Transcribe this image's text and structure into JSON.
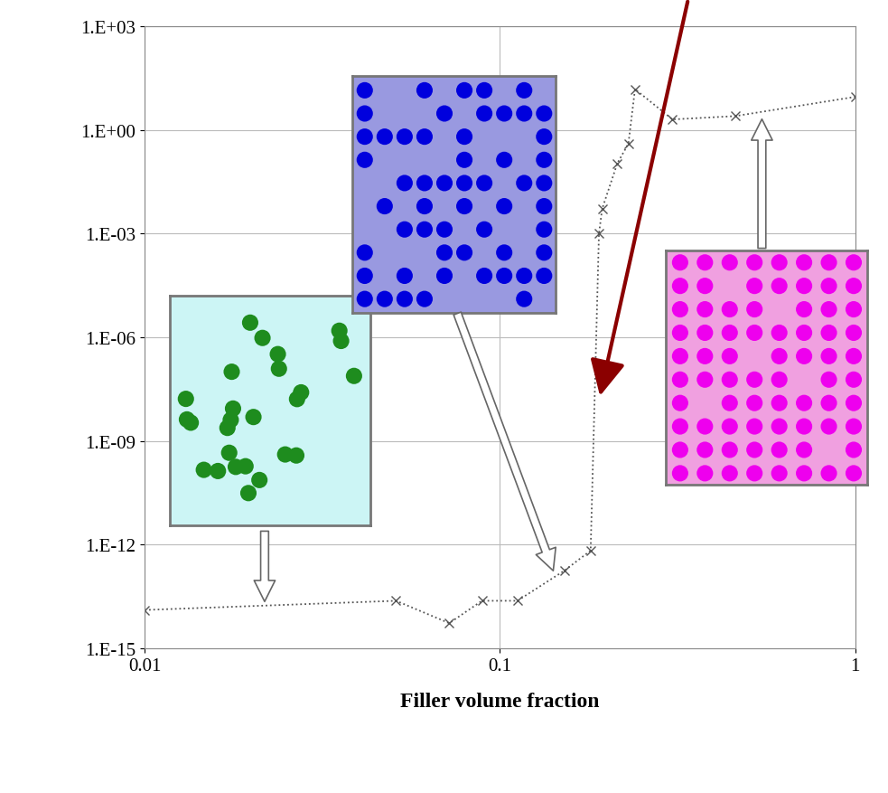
{
  "chart_data": {
    "type": "line",
    "x_label": "Filler volume fraction",
    "x": [
      0.01,
      0.051,
      0.072,
      0.089,
      0.112,
      0.152,
      0.18,
      0.19,
      0.194,
      0.214,
      0.23,
      0.24,
      0.306,
      0.46,
      1.0
    ],
    "values": [
      1.3e-14,
      2.4e-14,
      5.4e-15,
      2.4e-14,
      2.4e-14,
      1.8e-13,
      6.8e-13,
      0.001,
      0.0052,
      0.107,
      0.4,
      15,
      2,
      2.5,
      9
    ],
    "color": "#555555",
    "marker": "x",
    "line_style": "dotted",
    "log": true,
    "grid": true,
    "xlim": [
      0.01,
      1
    ],
    "xticks": [
      0.01,
      0.1,
      1
    ],
    "ylim": [
      1e-15,
      1000
    ],
    "yticks": [
      {
        "value": 1e-15,
        "label": "1.E-15"
      },
      {
        "value": 1e-12,
        "label": "1.E-12"
      },
      {
        "value": 1e-09,
        "label": "1.E-09"
      },
      {
        "value": 1e-06,
        "label": "1.E-06"
      },
      {
        "value": 0.001,
        "label": "1.E-03"
      },
      {
        "value": 1,
        "label": "1.E+00"
      },
      {
        "value": 1000,
        "label": "1.E+03"
      }
    ]
  }
}
